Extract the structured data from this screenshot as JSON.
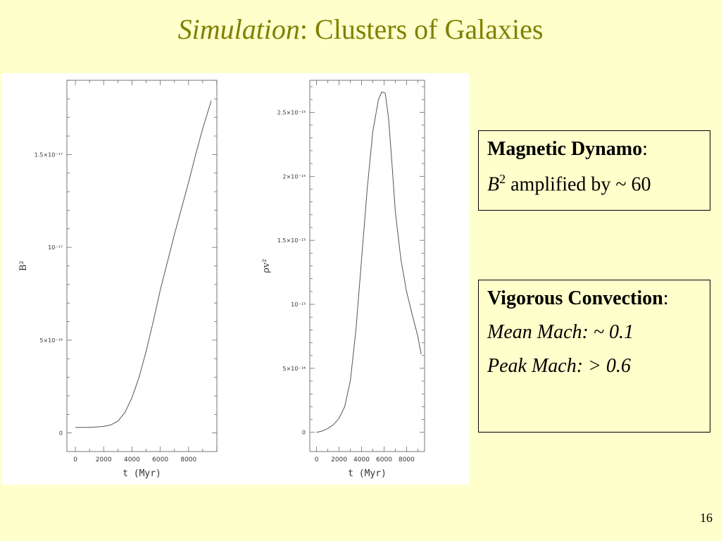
{
  "slide": {
    "title_italic": "Simulation",
    "title_rest": ": Clusters of Galaxies",
    "page_number": "16"
  },
  "boxes": {
    "dynamo": {
      "heading": "Magnetic Dynamo",
      "heading_suffix": ":",
      "line_var": "B",
      "line_sup": "2",
      "line_rest": " amplified by ~ 60"
    },
    "convection": {
      "heading": "Vigorous Convection",
      "heading_suffix": ":",
      "mean": "Mean Mach: ~ 0.1",
      "peak": "Peak Mach: > 0.6"
    }
  },
  "colors": {
    "title": "#808000",
    "background": "#ffffcc",
    "curve": "#555555"
  },
  "chart_data": [
    {
      "type": "line",
      "xlabel": "t (Myr)",
      "ylabel": "B²",
      "xlim": [
        -600,
        10000
      ],
      "ylim": [
        -1e-18,
        1.9e-17
      ],
      "xticks": [
        0,
        2000,
        4000,
        6000,
        8000
      ],
      "xtick_labels": [
        "0",
        "2000",
        "4000",
        "6000",
        "8000"
      ],
      "yticks": [
        0,
        5e-18,
        1e-17,
        1.5e-17
      ],
      "ytick_labels": [
        "0",
        "5×10⁻¹⁸",
        "10⁻¹⁷",
        "1.5×10⁻¹⁷"
      ],
      "series": [
        {
          "x": [
            0,
            1000,
            2000,
            2500,
            3000,
            3500,
            4000,
            4500,
            5000,
            5500,
            6000,
            6500,
            7000,
            7500,
            8000,
            8500,
            9000,
            9600
          ],
          "y": [
            3e-19,
            3e-19,
            3.5e-19,
            4.3e-19,
            6.3e-19,
            1.1e-18,
            1.9e-18,
            3e-18,
            4.4e-18,
            6e-18,
            7.7e-18,
            9.2e-18,
            1.07e-17,
            1.21e-17,
            1.35e-17,
            1.5e-17,
            1.64e-17,
            1.79e-17
          ]
        }
      ]
    },
    {
      "type": "line",
      "xlabel": "t (Myr)",
      "ylabel": "ρv²",
      "xlim": [
        -600,
        9600
      ],
      "ylim": [
        -1.5e-14,
        2.75e-13
      ],
      "xticks": [
        0,
        2000,
        4000,
        6000,
        8000
      ],
      "xtick_labels": [
        "0",
        "2000",
        "4000",
        "6000",
        "8000"
      ],
      "yticks": [
        0,
        5e-14,
        1e-13,
        1.5e-13,
        2e-13,
        2.5e-13
      ],
      "ytick_labels": [
        "0",
        "5×10⁻¹⁴",
        "10⁻¹³",
        "1.5×10⁻¹³",
        "2×10⁻¹³",
        "2.5×10⁻¹³"
      ],
      "series": [
        {
          "x": [
            0,
            500,
            1000,
            1500,
            2000,
            2500,
            3000,
            3500,
            4000,
            4500,
            5000,
            5500,
            5800,
            6100,
            6400,
            6700,
            7000,
            7500,
            8000,
            8500,
            9000,
            9300
          ],
          "y": [
            0,
            1e-15,
            3e-15,
            6e-15,
            1.1e-14,
            2e-14,
            4e-14,
            8e-14,
            1.35e-13,
            1.9e-13,
            2.35e-13,
            2.6e-13,
            2.66e-13,
            2.65e-13,
            2.45e-13,
            2.1e-13,
            1.72e-13,
            1.35e-13,
            1.1e-13,
            9.2e-14,
            7.5e-14,
            6.1e-14
          ]
        }
      ]
    }
  ]
}
